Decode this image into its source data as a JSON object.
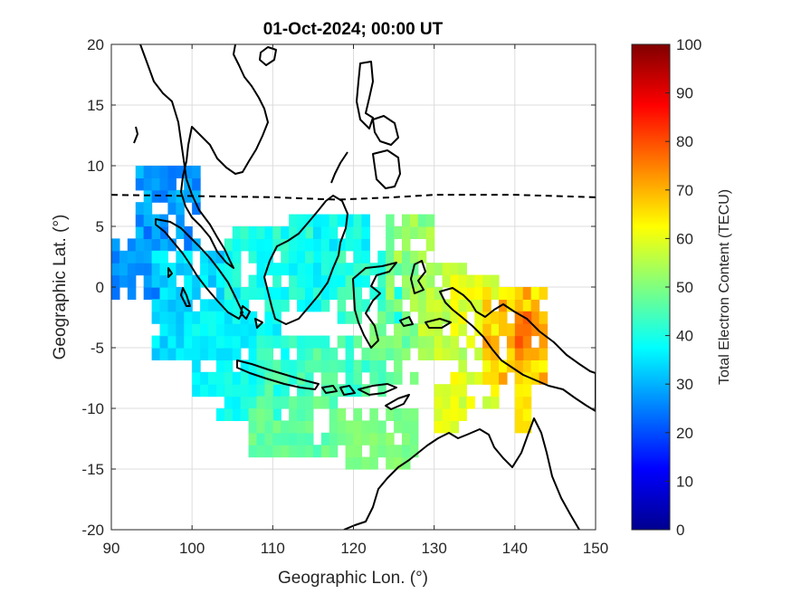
{
  "chart_data": {
    "type": "heatmap",
    "title": "01-Oct-2024; 00:00 UT",
    "xlabel": "Geographic Lon. (°)",
    "ylabel": "Geographic Lat. (°)",
    "xlim": [
      90,
      150
    ],
    "ylim": [
      -20,
      20
    ],
    "xticks": [
      "90",
      "100",
      "110",
      "120",
      "130",
      "140",
      "150"
    ],
    "yticks": [
      "20",
      "15",
      "10",
      "5",
      "0",
      "-5",
      "-10",
      "-15",
      "-20"
    ],
    "grid": true,
    "colorbar": {
      "label": "Total Electron Content (TECU)",
      "range": [
        0,
        100
      ],
      "ticks": [
        "100",
        "90",
        "80",
        "70",
        "60",
        "50",
        "40",
        "30",
        "20",
        "10",
        "0"
      ],
      "colormap": "jet"
    },
    "magnetic_equator": {
      "style": "dashed",
      "points": [
        [
          90,
          7.6
        ],
        [
          100,
          7.5
        ],
        [
          110,
          7.4
        ],
        [
          118,
          7.2
        ],
        [
          125,
          7.4
        ],
        [
          130,
          7.6
        ],
        [
          140,
          7.6
        ],
        [
          150,
          7.4
        ]
      ]
    },
    "tec_regions": [
      {
        "lon": [
          93,
          101
        ],
        "lat": [
          3,
          9.5
        ],
        "tec": [
          24,
          32
        ]
      },
      {
        "lon": [
          90,
          96
        ],
        "lat": [
          -1,
          5
        ],
        "tec": [
          22,
          30
        ]
      },
      {
        "lon": [
          95,
          106
        ],
        "lat": [
          -6,
          3
        ],
        "tec": [
          30,
          38
        ]
      },
      {
        "lon": [
          100,
          112
        ],
        "lat": [
          -9,
          -2
        ],
        "tec": [
          34,
          40
        ]
      },
      {
        "lon": [
          103,
          111
        ],
        "lat": [
          -11,
          -7
        ],
        "tec": [
          36,
          42
        ]
      },
      {
        "lon": [
          108,
          124
        ],
        "lat": [
          -9,
          -4
        ],
        "tec": [
          40,
          48
        ]
      },
      {
        "lon": [
          107,
          118
        ],
        "lat": [
          -14,
          -9
        ],
        "tec": [
          44,
          50
        ]
      },
      {
        "lon": [
          118,
          128
        ],
        "lat": [
          -15,
          -10
        ],
        "tec": [
          48,
          52
        ]
      },
      {
        "lon": [
          104,
          118
        ],
        "lat": [
          -2,
          5
        ],
        "tec": [
          36,
          44
        ]
      },
      {
        "lon": [
          112,
          122
        ],
        "lat": [
          0,
          6
        ],
        "tec": [
          34,
          42
        ]
      },
      {
        "lon": [
          118,
          126
        ],
        "lat": [
          -3,
          3
        ],
        "tec": [
          38,
          46
        ]
      },
      {
        "lon": [
          122,
          128
        ],
        "lat": [
          -8,
          -2
        ],
        "tec": [
          44,
          52
        ]
      },
      {
        "lon": [
          124,
          130
        ],
        "lat": [
          -2,
          6
        ],
        "tec": [
          46,
          56
        ]
      },
      {
        "lon": [
          128,
          134
        ],
        "lat": [
          -6,
          2
        ],
        "tec": [
          52,
          60
        ]
      },
      {
        "lon": [
          132,
          138
        ],
        "lat": [
          -10,
          1
        ],
        "tec": [
          56,
          64
        ]
      },
      {
        "lon": [
          136,
          144
        ],
        "lat": [
          -8,
          0
        ],
        "tec": [
          62,
          74
        ]
      },
      {
        "lon": [
          140,
          142
        ],
        "lat": [
          -6,
          -2
        ],
        "tec": [
          74,
          80
        ]
      },
      {
        "lon": [
          130,
          134
        ],
        "lat": [
          -12,
          -8
        ],
        "tec": [
          58,
          62
        ]
      },
      {
        "lon": [
          140,
          142
        ],
        "lat": [
          -12,
          -8
        ],
        "tec": [
          62,
          66
        ]
      }
    ]
  }
}
